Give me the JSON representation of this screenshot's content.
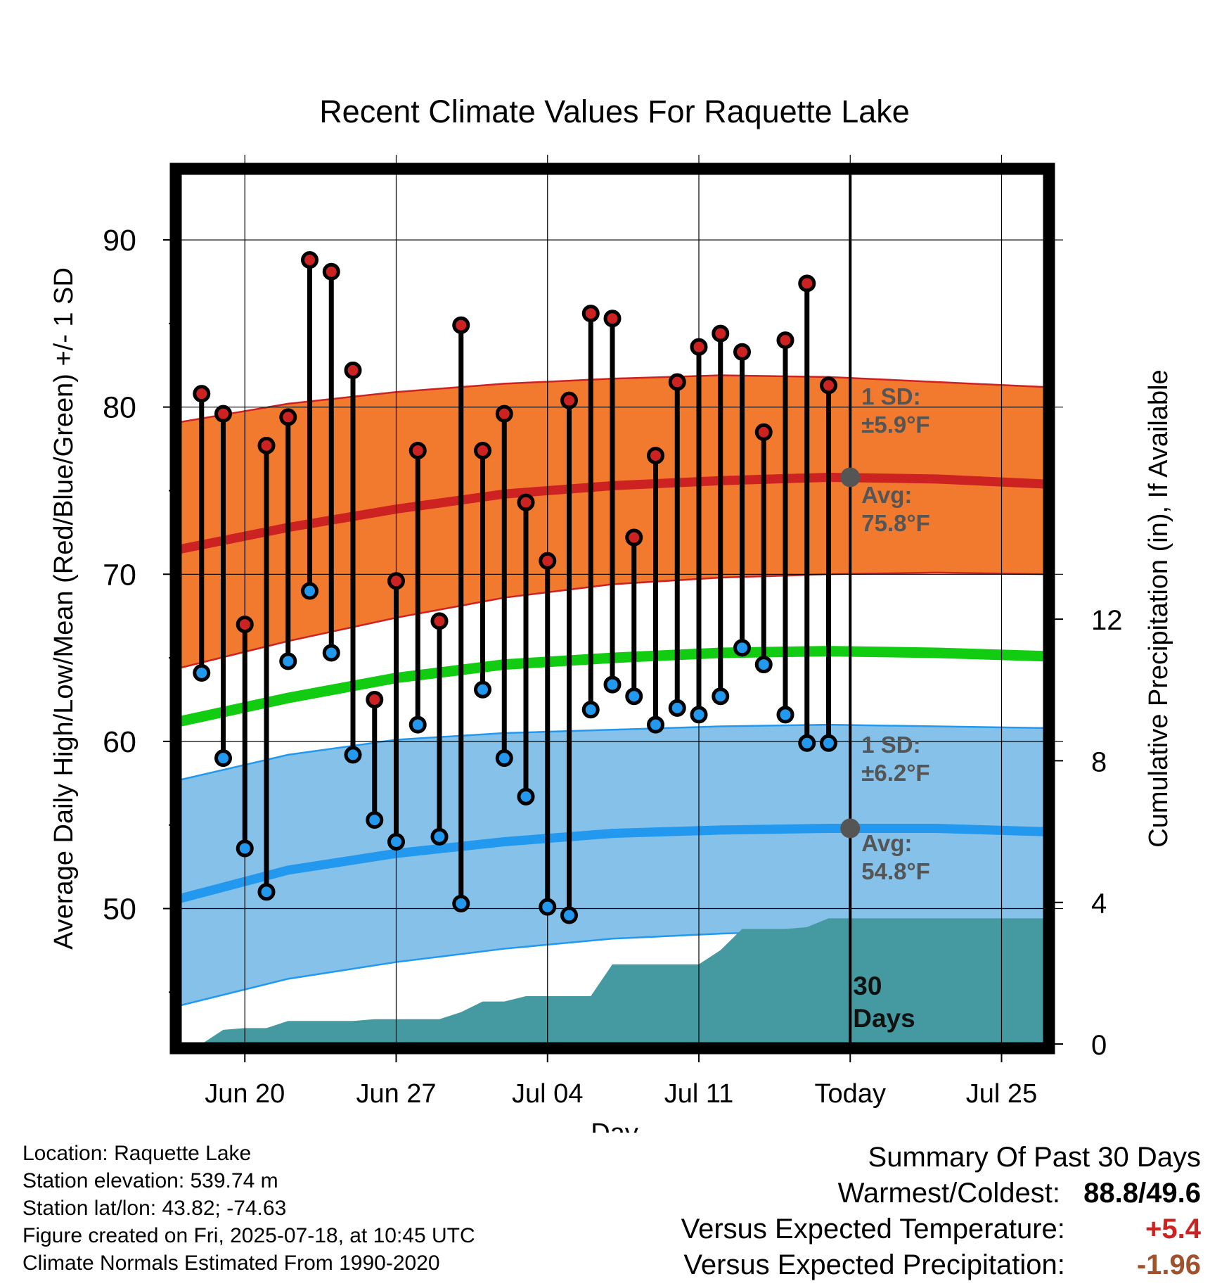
{
  "chart_data": {
    "type": "line",
    "title": "Recent Climate Values For Raquette Lake",
    "xlabel": "Day",
    "ylabel": "Average Daily High/Low/Mean (Red/Blue/Green) +/- 1 SD",
    "y2label": "Cumulative Precipitation (in), If Available",
    "y_ticks": [
      "90",
      "80",
      "70",
      "60",
      "50"
    ],
    "y2_ticks": [
      "12",
      "8",
      "4",
      "0"
    ],
    "x_ticks": [
      "Jun 20",
      "Jun 27",
      "Jul 04",
      "Jul 11",
      "Today",
      "Jul 25"
    ],
    "ylim": [
      41.9,
      94
    ],
    "y2lim": [
      0,
      24.6
    ],
    "xlim": [
      "2025-06-17",
      "2025-07-27"
    ],
    "grid": true,
    "today": "2025-07-18",
    "dates": [
      "2025-06-18",
      "2025-06-19",
      "2025-06-20",
      "2025-06-21",
      "2025-06-22",
      "2025-06-23",
      "2025-06-24",
      "2025-06-25",
      "2025-06-26",
      "2025-06-27",
      "2025-06-28",
      "2025-06-29",
      "2025-06-30",
      "2025-07-01",
      "2025-07-02",
      "2025-07-03",
      "2025-07-04",
      "2025-07-05",
      "2025-07-06",
      "2025-07-07",
      "2025-07-08",
      "2025-07-09",
      "2025-07-10",
      "2025-07-11",
      "2025-07-12",
      "2025-07-13",
      "2025-07-14",
      "2025-07-15",
      "2025-07-16",
      "2025-07-17"
    ],
    "series": [
      {
        "name": "High",
        "color": "#cc2222",
        "values": [
          80.8,
          79.6,
          67.0,
          77.7,
          79.4,
          88.8,
          88.1,
          82.2,
          62.5,
          69.6,
          77.4,
          67.2,
          84.9,
          77.4,
          79.6,
          74.3,
          70.8,
          80.4,
          85.6,
          85.3,
          72.2,
          77.1,
          81.5,
          83.6,
          84.4,
          83.3,
          78.5,
          84.0,
          87.4,
          81.3
        ]
      },
      {
        "name": "Low",
        "color": "#2299ee",
        "values": [
          64.1,
          59.0,
          53.6,
          51.0,
          64.8,
          69.0,
          65.3,
          59.2,
          55.3,
          54.0,
          61.0,
          54.3,
          50.3,
          63.1,
          59.0,
          56.7,
          50.1,
          49.6,
          61.9,
          63.4,
          62.7,
          61.0,
          62.0,
          61.6,
          62.7,
          65.6,
          64.6,
          61.6,
          59.9,
          59.9
        ]
      }
    ],
    "normals": {
      "dates": [
        "2025-06-17",
        "2025-06-22",
        "2025-06-27",
        "2025-07-02",
        "2025-07-07",
        "2025-07-12",
        "2025-07-17",
        "2025-07-22",
        "2025-07-27"
      ],
      "high_avg": [
        71.5,
        72.8,
        73.9,
        74.8,
        75.3,
        75.6,
        75.8,
        75.7,
        75.4
      ],
      "high_sd_upper": [
        79.1,
        80.2,
        80.9,
        81.4,
        81.7,
        81.9,
        81.8,
        81.5,
        81.2
      ],
      "high_sd_lower": [
        64.4,
        66.0,
        67.4,
        68.6,
        69.4,
        69.8,
        70.0,
        70.1,
        70.0
      ],
      "mean_avg": [
        61.2,
        62.6,
        63.8,
        64.6,
        65.0,
        65.3,
        65.4,
        65.3,
        65.1
      ],
      "low_avg": [
        50.6,
        52.3,
        53.3,
        54.0,
        54.5,
        54.7,
        54.8,
        54.8,
        54.6
      ],
      "low_sd_upper": [
        57.7,
        59.2,
        60.1,
        60.5,
        60.7,
        60.9,
        61.0,
        60.9,
        60.8
      ],
      "low_sd_lower": [
        44.2,
        45.8,
        46.8,
        47.6,
        48.2,
        48.5,
        48.7,
        48.8,
        48.7
      ]
    },
    "precip": {
      "dates": [
        "2025-06-18",
        "2025-06-19",
        "2025-06-20",
        "2025-06-21",
        "2025-06-22",
        "2025-06-23",
        "2025-06-24",
        "2025-06-25",
        "2025-06-26",
        "2025-06-27",
        "2025-06-28",
        "2025-06-29",
        "2025-06-30",
        "2025-07-01",
        "2025-07-02",
        "2025-07-03",
        "2025-07-04",
        "2025-07-05",
        "2025-07-06",
        "2025-07-07",
        "2025-07-08",
        "2025-07-09",
        "2025-07-10",
        "2025-07-11",
        "2025-07-12",
        "2025-07-13",
        "2025-07-14",
        "2025-07-15",
        "2025-07-16",
        "2025-07-17",
        "2025-07-18",
        "2025-07-27"
      ],
      "values": [
        0,
        0.4,
        0.45,
        0.45,
        0.65,
        0.65,
        0.65,
        0.65,
        0.7,
        0.7,
        0.7,
        0.7,
        0.9,
        1.2,
        1.2,
        1.35,
        1.35,
        1.35,
        1.35,
        2.25,
        2.25,
        2.25,
        2.25,
        2.25,
        2.65,
        3.25,
        3.25,
        3.25,
        3.3,
        3.55,
        3.55,
        3.55
      ],
      "color": "#459aa1"
    },
    "annotations": {
      "high_sd_line1": "1 SD:",
      "high_sd_line2": "±5.9°F",
      "high_avg_line1": "Avg:",
      "high_avg_line2": "75.8°F",
      "low_sd_line1": "1 SD:",
      "low_sd_line2": "±6.2°F",
      "low_avg_line1": "Avg:",
      "low_avg_line2": "54.8°F",
      "days_line1": "30",
      "days_line2": "Days"
    },
    "colors": {
      "high_band": "#f27a2f",
      "high_line": "#cc2222",
      "mean_line": "#11cc11",
      "low_band": "#85c1e9",
      "low_line": "#2299ee",
      "precip": "#459aa1",
      "annotation": "#555555"
    }
  },
  "info": {
    "location": "Location: Raquette Lake",
    "elevation": "Station elevation: 539.74 m",
    "latlon": "Station lat/lon: 43.82; -74.63",
    "created": "Figure created on Fri, 2025-07-18, at 10:45 UTC",
    "normals": "Climate Normals Estimated From 1990-2020"
  },
  "summary": {
    "title": "Summary Of Past 30 Days",
    "warm_label": "Warmest/Coldest:",
    "warmest": "88.8",
    "separator": "/",
    "coldest": "49.6",
    "temp_label": "Versus Expected Temperature:",
    "temp_value": "+5.4",
    "temp_color": "#cc2222",
    "precip_label": "Versus Expected Precipitation:",
    "precip_value": "-1.96",
    "precip_color": "#a0522d"
  }
}
